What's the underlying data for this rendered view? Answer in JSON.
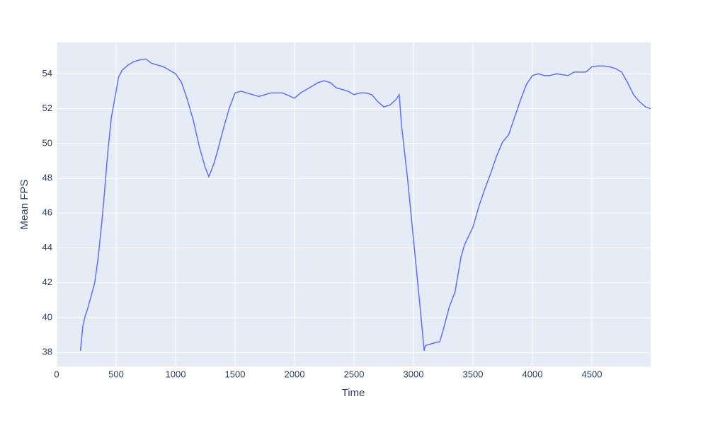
{
  "chart_data": {
    "type": "line",
    "x_label": "Time",
    "y_label": "Mean FPS",
    "x": [
      200,
      220,
      240,
      260,
      300,
      320,
      350,
      380,
      400,
      430,
      460,
      500,
      520,
      550,
      600,
      650,
      700,
      750,
      800,
      850,
      900,
      950,
      1000,
      1050,
      1100,
      1150,
      1200,
      1250,
      1280,
      1320,
      1350,
      1400,
      1450,
      1500,
      1550,
      1600,
      1700,
      1800,
      1900,
      2000,
      2050,
      2100,
      2150,
      2200,
      2250,
      2300,
      2350,
      2400,
      2450,
      2500,
      2550,
      2600,
      2650,
      2700,
      2750,
      2800,
      2850,
      2880,
      2900,
      2950,
      3000,
      3050,
      3090,
      3100,
      3150,
      3200,
      3220,
      3250,
      3300,
      3350,
      3400,
      3430,
      3500,
      3550,
      3600,
      3650,
      3700,
      3750,
      3800,
      3850,
      3900,
      3950,
      4000,
      4050,
      4100,
      4150,
      4200,
      4300,
      4350,
      4400,
      4450,
      4500,
      4550,
      4600,
      4650,
      4700,
      4750,
      4800,
      4850,
      4900,
      4950,
      4994
    ],
    "values": [
      38.1,
      39.5,
      40.1,
      40.5,
      41.5,
      42.0,
      43.5,
      45.5,
      47.0,
      49.5,
      51.5,
      53.0,
      53.8,
      54.2,
      54.5,
      54.7,
      54.8,
      54.85,
      54.6,
      54.5,
      54.4,
      54.2,
      54.0,
      53.5,
      52.5,
      51.3,
      49.8,
      48.6,
      48.1,
      48.8,
      49.5,
      50.8,
      52.0,
      52.9,
      53.0,
      52.9,
      52.7,
      52.9,
      52.9,
      52.6,
      52.9,
      53.1,
      53.3,
      53.5,
      53.6,
      53.5,
      53.2,
      53.1,
      53.0,
      52.8,
      52.9,
      52.9,
      52.8,
      52.4,
      52.1,
      52.2,
      52.5,
      52.8,
      51.0,
      48.0,
      44.5,
      41.0,
      38.1,
      38.4,
      38.5,
      38.6,
      38.6,
      39.3,
      40.6,
      41.5,
      43.5,
      44.2,
      45.2,
      46.4,
      47.4,
      48.3,
      49.3,
      50.1,
      50.5,
      51.5,
      52.5,
      53.4,
      53.9,
      54.0,
      53.9,
      53.9,
      54.0,
      53.9,
      54.1,
      54.1,
      54.1,
      54.4,
      54.45,
      54.45,
      54.4,
      54.3,
      54.1,
      53.5,
      52.8,
      52.4,
      52.1,
      52.0
    ],
    "color": "#636efa",
    "xlim": [
      0,
      4994
    ],
    "xticks": [
      0,
      500,
      1000,
      1500,
      2000,
      2500,
      3000,
      3500,
      4000,
      4500
    ],
    "ylim": [
      37.2,
      55.8
    ],
    "yticks": [
      38,
      40,
      42,
      44,
      46,
      48,
      50,
      52,
      54
    ],
    "grid": true
  }
}
